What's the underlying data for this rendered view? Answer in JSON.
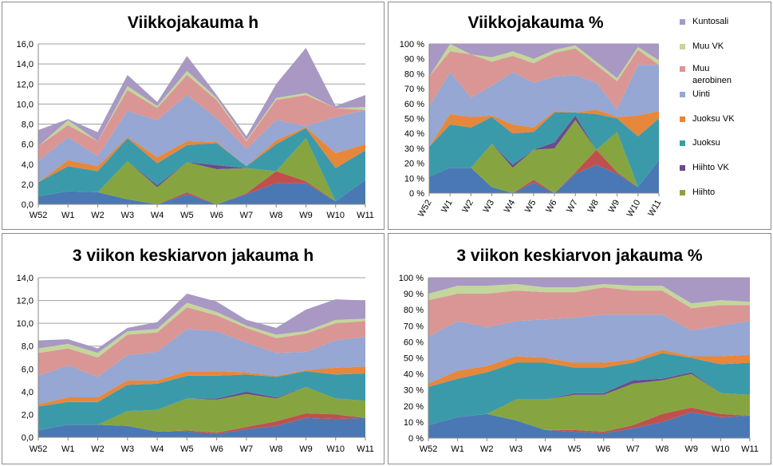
{
  "weeks": [
    "W52",
    "W1",
    "W2",
    "W3",
    "W4",
    "W5",
    "W6",
    "W7",
    "W8",
    "W9",
    "W10",
    "W11"
  ],
  "series_order": [
    "Kuntosali",
    "Muu VK",
    "Muu aerobinen",
    "Uinti",
    "Juoksu VK",
    "Juoksu",
    "Hiihto VK",
    "Hiihto"
  ],
  "stack_order": [
    "Tunnistamaton",
    "Hiihto",
    "Hiihto VK",
    "Juoksu",
    "Juoksu VK",
    "Uinti",
    "Muu aerobinen",
    "Muu VK",
    "Kuntosali"
  ],
  "colors": {
    "Kuntosali": "#a898c3",
    "Muu VK": "#c3d69b",
    "Muu aerobinen": "#da9694",
    "Uinti": "#95a7d2",
    "Juoksu VK": "#e6873b",
    "Juoksu": "#3b9aaa",
    "Hiihto VK": "#6b4b8c",
    "Hiihto": "#86a540",
    "Tunnistamaton": "#4a78b4",
    "Punainen": "#c0504d"
  },
  "legend": {
    "items": [
      {
        "key": "Kuntosali",
        "label": "Kuntosali"
      },
      {
        "key": "Muu VK",
        "label": "Muu VK"
      },
      {
        "key": "Muu aerobinen",
        "label": "Muu\naerobinen"
      },
      {
        "key": "Uinti",
        "label": "Uinti"
      },
      {
        "key": "Juoksu VK",
        "label": "Juoksu VK"
      },
      {
        "key": "Juoksu",
        "label": "Juoksu"
      },
      {
        "key": "Hiihto VK",
        "label": "Hiihto VK"
      },
      {
        "key": "Hiihto",
        "label": "Hiihto"
      }
    ]
  },
  "chart_data": [
    {
      "type": "area",
      "stacked": true,
      "title": "Viikkojakauma h",
      "ylim": [
        0,
        16
      ],
      "yticks": [
        "0,0",
        "2,0",
        "4,0",
        "6,0",
        "8,0",
        "10,0",
        "12,0",
        "14,0",
        "16,0"
      ],
      "grid": true,
      "series": [
        {
          "key": "Tunnistamaton",
          "values": [
            0.8,
            1.3,
            1.2,
            0.5,
            0.0,
            1.0,
            0.0,
            1.0,
            2.1,
            2.1,
            0.3,
            2.4
          ]
        },
        {
          "key": "Punainen",
          "values": [
            0,
            0,
            0,
            0,
            0,
            0.2,
            0,
            0.1,
            1.2,
            0.2,
            0,
            0
          ]
        },
        {
          "key": "Hiihto",
          "values": [
            0,
            0,
            0,
            3.8,
            1.7,
            3.0,
            3.5,
            2.5,
            0,
            4.3,
            0,
            0
          ]
        },
        {
          "key": "Hiihto VK",
          "values": [
            0,
            0,
            0,
            0,
            0.2,
            0,
            0.4,
            0,
            0,
            0,
            0,
            0
          ]
        },
        {
          "key": "Juoksu",
          "values": [
            1.4,
            2.5,
            2.1,
            2.3,
            2.2,
            1.7,
            2.2,
            0.2,
            2.7,
            1.0,
            3.3,
            3.0
          ]
        },
        {
          "key": "Juoksu VK",
          "values": [
            0,
            0.6,
            0.5,
            0.1,
            0.6,
            0.4,
            0.1,
            0,
            0.4,
            0.1,
            1.5,
            0.6
          ]
        },
        {
          "key": "Uinti",
          "values": [
            2.1,
            2.3,
            1.0,
            2.6,
            3.7,
            4.6,
            2.4,
            1.7,
            2.0,
            0.1,
            3.6,
            3.4
          ]
        },
        {
          "key": "Muu aerobinen",
          "values": [
            1.5,
            1.2,
            1.5,
            2.1,
            1.2,
            2.0,
            1.8,
            0.8,
            2.0,
            3.1,
            0.9,
            0.0
          ]
        },
        {
          "key": "Muu VK",
          "values": [
            0,
            0.5,
            0,
            0.4,
            0.2,
            0.4,
            0.2,
            0.1,
            0.2,
            0.2,
            0,
            0.3
          ]
        },
        {
          "key": "Kuntosali",
          "values": [
            1.6,
            0.1,
            0.9,
            1.1,
            0.4,
            1.5,
            0.3,
            0.4,
            1.4,
            4.5,
            0.2,
            1.2
          ]
        }
      ]
    },
    {
      "type": "area",
      "stacked": true,
      "title": "Viikkojakauma %",
      "ylim": [
        0,
        100
      ],
      "yticks": [
        "0 %",
        "10 %",
        "20 %",
        "30 %",
        "40 %",
        "50 %",
        "60 %",
        "70 %",
        "80 %",
        "90 %",
        "100 %"
      ],
      "grid": true,
      "series": [
        {
          "key": "Tunnistamaton",
          "values": [
            11,
            17,
            17,
            4,
            0,
            7,
            0,
            13,
            19,
            13,
            4,
            22
          ]
        },
        {
          "key": "Punainen",
          "values": [
            0,
            0,
            0,
            0,
            0,
            2,
            0,
            1,
            10,
            1,
            0,
            0
          ]
        },
        {
          "key": "Hiihto",
          "values": [
            0,
            0,
            0,
            29,
            17,
            20,
            30,
            35,
            0,
            27,
            0,
            0
          ]
        },
        {
          "key": "Hiihto VK",
          "values": [
            0,
            0,
            0,
            0,
            2,
            0,
            4,
            3,
            0,
            0,
            0,
            0
          ]
        },
        {
          "key": "Juoksu",
          "values": [
            20,
            29,
            27,
            18,
            21,
            12,
            20,
            2,
            24,
            9,
            34,
            28
          ]
        },
        {
          "key": "Juoksu VK",
          "values": [
            0,
            7,
            7,
            1,
            6,
            3,
            1,
            0,
            3,
            1,
            14,
            5
          ]
        },
        {
          "key": "Uinti",
          "values": [
            27,
            28,
            13,
            20,
            35,
            30,
            23,
            25,
            18,
            5,
            34,
            31
          ]
        },
        {
          "key": "Muu aerobinen",
          "values": [
            20,
            14,
            29,
            16,
            11,
            13,
            16,
            18,
            12,
            19,
            10,
            0
          ]
        },
        {
          "key": "Muu VK",
          "values": [
            0,
            6,
            0,
            3,
            3,
            3,
            2,
            2,
            2,
            2,
            2,
            3
          ]
        },
        {
          "key": "Kuntosali",
          "values": [
            22,
            0,
            7,
            9,
            5,
            10,
            4,
            1,
            12,
            23,
            2,
            11
          ]
        }
      ]
    },
    {
      "type": "area",
      "stacked": true,
      "title": "3 viikon keskiarvon jakauma h",
      "ylim": [
        0,
        14
      ],
      "yticks": [
        "0,0",
        "2,0",
        "4,0",
        "6,0",
        "8,0",
        "10,0",
        "12,0",
        "14,0"
      ],
      "grid": true,
      "series": [
        {
          "key": "Tunnistamaton",
          "values": [
            0.6,
            1.1,
            1.1,
            1.0,
            0.5,
            0.5,
            0.3,
            0.7,
            1.0,
            1.7,
            1.6,
            1.7
          ]
        },
        {
          "key": "Punainen",
          "values": [
            0,
            0,
            0,
            0,
            0,
            0.1,
            0.1,
            0.2,
            0.4,
            0.4,
            0.4,
            0
          ]
        },
        {
          "key": "Hiihto",
          "values": [
            0,
            0,
            0,
            1.3,
            1.9,
            2.8,
            2.9,
            2.9,
            2.0,
            2.3,
            1.4,
            1.5
          ]
        },
        {
          "key": "Hiihto VK",
          "values": [
            0,
            0,
            0,
            0,
            0,
            0,
            0.1,
            0.2,
            0.1,
            0,
            0,
            0
          ]
        },
        {
          "key": "Juoksu",
          "values": [
            2.1,
            2.0,
            2.0,
            2.3,
            2.3,
            2.0,
            2.0,
            1.5,
            1.8,
            1.4,
            2.1,
            2.4
          ]
        },
        {
          "key": "Juoksu VK",
          "values": [
            0.2,
            0.4,
            0.4,
            0.4,
            0.3,
            0.4,
            0.4,
            0.2,
            0.1,
            0.1,
            0.6,
            0.6
          ]
        },
        {
          "key": "Uinti",
          "values": [
            2.5,
            2.8,
            1.8,
            2.2,
            2.5,
            3.7,
            3.5,
            2.6,
            2.0,
            1.6,
            2.4,
            2.6
          ]
        },
        {
          "key": "Muu aerobinen",
          "values": [
            2.0,
            1.5,
            1.7,
            1.8,
            1.7,
            1.9,
            1.4,
            1.3,
            1.3,
            1.6,
            1.5,
            1.4
          ]
        },
        {
          "key": "Muu VK",
          "values": [
            0.4,
            0.4,
            0.4,
            0.3,
            0.3,
            0.4,
            0.3,
            0.2,
            0.3,
            0.2,
            0.3,
            0.2
          ]
        },
        {
          "key": "Kuntosali",
          "values": [
            0.7,
            0.4,
            0.4,
            0.3,
            0.6,
            0.8,
            0.9,
            0.5,
            0.6,
            1.9,
            1.8,
            1.6
          ]
        }
      ]
    },
    {
      "type": "area",
      "stacked": true,
      "title": "3 viikon keskiarvon jakauma %",
      "ylim": [
        0,
        100
      ],
      "yticks": [
        "0 %",
        "10 %",
        "20 %",
        "30 %",
        "40 %",
        "50 %",
        "60 %",
        "70 %",
        "80 %",
        "90 %",
        "100 %"
      ],
      "grid": true,
      "series": [
        {
          "key": "Tunnistamaton",
          "values": [
            8,
            13,
            15,
            11,
            5,
            4,
            3,
            6,
            10,
            16,
            13,
            14
          ]
        },
        {
          "key": "Punainen",
          "values": [
            0,
            0,
            0,
            0,
            0,
            1,
            1,
            2,
            5,
            3,
            2,
            0
          ]
        },
        {
          "key": "Hiihto",
          "values": [
            0,
            0,
            0,
            13,
            19,
            22,
            23,
            26,
            21,
            21,
            13,
            13
          ]
        },
        {
          "key": "Hiihto VK",
          "values": [
            0,
            0,
            0,
            0,
            0,
            1,
            1,
            2,
            1,
            1,
            0,
            0
          ]
        },
        {
          "key": "Juoksu",
          "values": [
            24,
            24,
            26,
            23,
            23,
            16,
            16,
            11,
            16,
            9,
            18,
            20
          ]
        },
        {
          "key": "Juoksu VK",
          "values": [
            2,
            5,
            4,
            4,
            3,
            3,
            3,
            2,
            2,
            1,
            5,
            5
          ]
        },
        {
          "key": "Uinti",
          "values": [
            29,
            31,
            24,
            22,
            24,
            28,
            30,
            28,
            22,
            16,
            19,
            21
          ]
        },
        {
          "key": "Muu aerobinen",
          "values": [
            23,
            17,
            21,
            19,
            17,
            16,
            17,
            15,
            15,
            14,
            13,
            10
          ]
        },
        {
          "key": "Muu VK",
          "values": [
            4,
            5,
            5,
            4,
            3,
            3,
            2,
            3,
            3,
            3,
            3,
            2
          ]
        },
        {
          "key": "Kuntosali",
          "values": [
            10,
            5,
            5,
            4,
            6,
            6,
            4,
            5,
            5,
            16,
            14,
            15
          ]
        }
      ]
    }
  ]
}
